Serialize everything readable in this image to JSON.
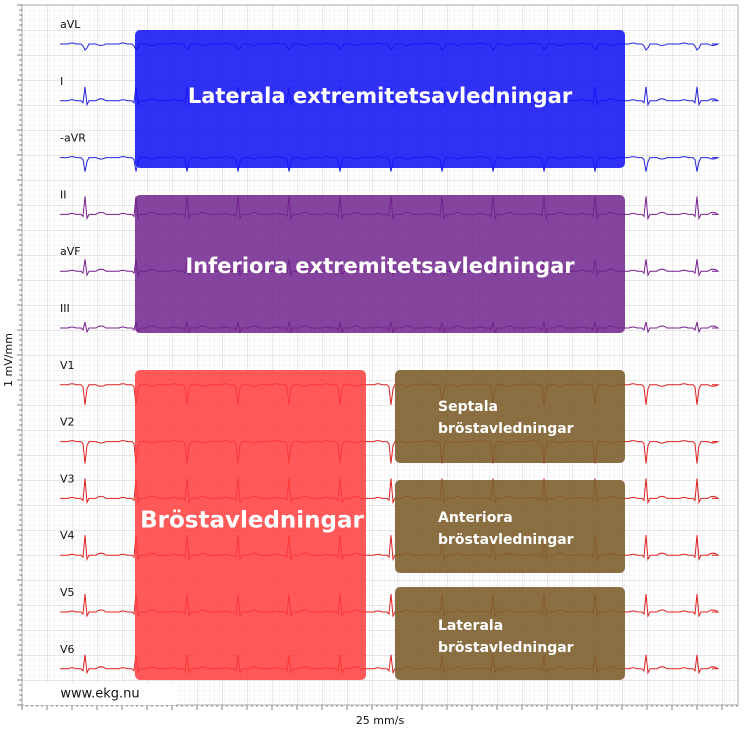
{
  "leads": [
    "aVL",
    "I",
    "-aVR",
    "II",
    "aVF",
    "III",
    "V1",
    "V2",
    "V3",
    "V4",
    "V5",
    "V6"
  ],
  "regions": [
    {
      "lines": [
        "Laterala extremitetsavledningar"
      ]
    },
    {
      "lines": [
        "Inferiora extremitetsavledningar"
      ]
    },
    {
      "lines": [
        "Bröstavledningar"
      ]
    },
    {
      "lines": [
        "Septala",
        "bröstavledningar"
      ]
    },
    {
      "lines": [
        "Anteriora",
        "bröstavledningar"
      ]
    },
    {
      "lines": [
        "Laterala",
        "bröstavledningar"
      ]
    }
  ],
  "watermark": "www.ekg.nu",
  "speed": "25 mm/s",
  "gain": "1 mV/mm"
}
